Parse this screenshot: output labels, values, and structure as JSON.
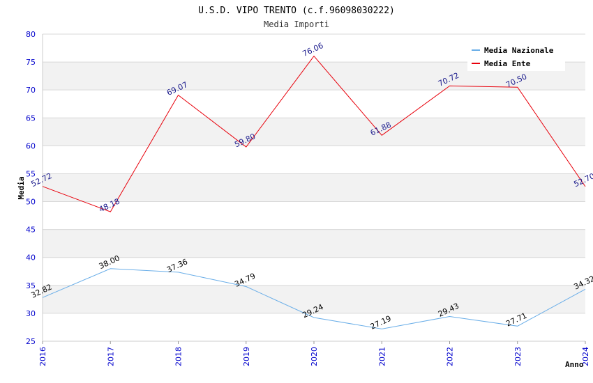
{
  "chart_data": {
    "type": "line",
    "title": "U.S.D. VIPO TRENTO (c.f.96098030222)",
    "subtitle": "Media Importi",
    "xlabel": "Anno",
    "ylabel": "Media",
    "x": [
      "2016",
      "2017",
      "2018",
      "2019",
      "2020",
      "2021",
      "2022",
      "2023",
      "2024"
    ],
    "ylim": [
      25,
      80
    ],
    "yticks": [
      "25",
      "30",
      "35",
      "40",
      "45",
      "50",
      "55",
      "60",
      "65",
      "70",
      "75",
      "80"
    ],
    "grid": true,
    "legend_position": "top-right",
    "series": [
      {
        "name": "Media Nazionale",
        "color": "#6aaee8",
        "label_color": "#000000",
        "values": [
          32.82,
          38.0,
          37.36,
          34.79,
          29.24,
          27.19,
          29.43,
          27.71,
          34.32
        ],
        "labels": [
          "32.82",
          "38.00",
          "37.36",
          "34.79",
          "29.24",
          "27.19",
          "29.43",
          "27.71",
          "34.32"
        ]
      },
      {
        "name": "Media Ente",
        "color": "#e8000b",
        "label_color": "#1a1a8c",
        "values": [
          52.72,
          48.18,
          69.07,
          59.8,
          76.06,
          61.88,
          70.72,
          70.5,
          52.7
        ],
        "labels": [
          "52.72",
          "48.18",
          "69.07",
          "59.80",
          "76.06",
          "61.88",
          "70.72",
          "70.50",
          "52.70"
        ]
      }
    ]
  },
  "colors": {
    "band": "#f2f2f2",
    "gridline": "#d8d8d8",
    "axis": "#cccccc",
    "tick_text": "#0000cc",
    "title_text": "#000000",
    "subtitle_text": "#333333"
  }
}
